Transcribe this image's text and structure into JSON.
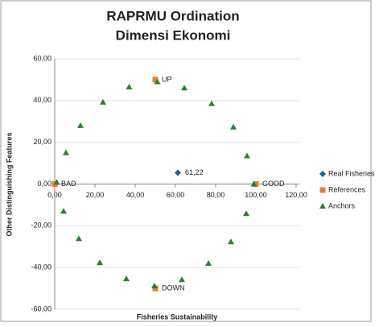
{
  "chart_data": {
    "type": "scatter",
    "title": [
      "RAPRMU Ordination",
      "Dimensi Ekonomi"
    ],
    "x_label": "Fisheries Sustainability",
    "y_label": "Other Distinguishing Features",
    "xlim": [
      0,
      120
    ],
    "ylim": [
      -60,
      60
    ],
    "xticks": [
      {
        "value": 0,
        "label": "0,00"
      },
      {
        "value": 20,
        "label": "20,00"
      },
      {
        "value": 40,
        "label": "40,00"
      },
      {
        "value": 60,
        "label": "60,00"
      },
      {
        "value": 80,
        "label": "80,00"
      },
      {
        "value": 100,
        "label": "100,00"
      },
      {
        "value": 120,
        "label": "120,00"
      }
    ],
    "yticks": [
      {
        "value": -60,
        "label": "-60,00"
      },
      {
        "value": -40,
        "label": "-40,00"
      },
      {
        "value": -20,
        "label": "-20,00"
      },
      {
        "value": 0,
        "label": "0,00"
      },
      {
        "value": 20,
        "label": "20,00"
      },
      {
        "value": 40,
        "label": "40,00"
      },
      {
        "value": 60,
        "label": "60,00"
      }
    ],
    "grid": true,
    "legend": "right",
    "series": [
      {
        "name": "Real Fisheries",
        "color": "#1f5f8b",
        "marker": "diamond",
        "x": [
          61.22
        ],
        "values": [
          5.4
        ],
        "x_labels": [
          "61,22"
        ]
      },
      {
        "name": "References",
        "color": "#ed7d31",
        "marker": "square",
        "x": [
          0,
          100,
          50,
          50
        ],
        "values": [
          0,
          0,
          50,
          -50
        ],
        "point_labels": [
          "BAD",
          "GOOD",
          "UP",
          "DOWN"
        ]
      },
      {
        "name": "Anchors",
        "color": "#2e7d32",
        "marker": "triangle",
        "x": [
          1,
          5.6,
          12.8,
          24,
          37,
          51,
          64.4,
          78,
          88.8,
          95.6,
          99,
          95.2,
          87.6,
          76.4,
          63.2,
          49.6,
          35.6,
          22.4,
          12,
          4.4
        ],
        "values": [
          0.8,
          15,
          28,
          39.2,
          46.5,
          49,
          46,
          38.5,
          27.3,
          13.5,
          0,
          -14.2,
          -27.7,
          -38,
          -45.8,
          -48.8,
          -45.4,
          -37.7,
          -26.2,
          -13
        ]
      }
    ]
  }
}
